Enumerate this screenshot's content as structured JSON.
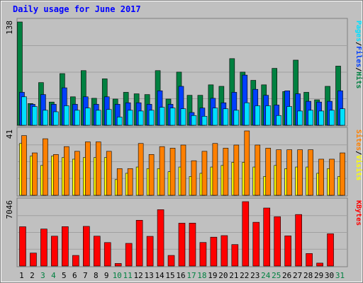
{
  "chart_data": [
    {
      "type": "bar",
      "title": "Daily usage for June 2017",
      "ylabel_max": "138",
      "legend": [
        "Pages",
        "Files",
        "Hits"
      ],
      "series": [
        {
          "name": "Hits",
          "color": "#008040",
          "values": [
            138,
            29,
            57,
            31,
            69,
            38,
            73,
            36,
            62,
            35,
            44,
            42,
            41,
            73,
            35,
            71,
            40,
            40,
            54,
            52,
            89,
            71,
            60,
            54,
            76,
            45,
            87,
            44,
            34,
            52,
            79
          ]
        },
        {
          "name": "Files",
          "color": "#0040ff",
          "values": [
            44,
            28,
            41,
            28,
            50,
            28,
            38,
            28,
            38,
            28,
            30,
            30,
            28,
            46,
            28,
            52,
            17,
            23,
            36,
            30,
            44,
            67,
            48,
            40,
            27,
            46,
            42,
            32,
            31,
            32,
            46
          ]
        },
        {
          "name": "Pages",
          "color": "#00e0ff",
          "values": [
            38,
            25,
            20,
            18,
            26,
            20,
            23,
            20,
            21,
            11,
            20,
            19,
            20,
            24,
            23,
            22,
            13,
            12,
            23,
            22,
            20,
            30,
            26,
            26,
            13,
            25,
            19,
            20,
            19,
            20,
            22
          ]
        }
      ]
    },
    {
      "type": "bar",
      "ylabel_max": "41",
      "legend": [
        "Sites",
        "Visits"
      ],
      "series": [
        {
          "name": "Visits",
          "color": "#ffff00",
          "values": [
            33,
            25,
            19,
            25,
            24,
            23,
            24,
            24,
            24,
            10,
            14,
            18,
            17,
            17,
            15,
            18,
            12,
            14,
            18,
            19,
            21,
            21,
            18,
            12,
            19,
            17,
            18,
            18,
            14,
            17,
            12
          ]
        },
        {
          "name": "Sites",
          "color": "#ff8000",
          "values": [
            38,
            27,
            36,
            26,
            31,
            28,
            34,
            34,
            28,
            17,
            17,
            33,
            26,
            31,
            30,
            32,
            22,
            28,
            33,
            30,
            32,
            41,
            32,
            30,
            29,
            29,
            29,
            29,
            23,
            23,
            27
          ]
        }
      ]
    },
    {
      "type": "bar",
      "ylabel_max": "7046",
      "legend": [
        "KBytes"
      ],
      "series": [
        {
          "name": "KBytes",
          "color": "#ff0000",
          "values": [
            4300,
            1420,
            4050,
            3270,
            4310,
            1160,
            4340,
            3270,
            2570,
            280,
            2480,
            5010,
            3250,
            6170,
            1160,
            4690,
            4700,
            2580,
            3160,
            3330,
            2350,
            7046,
            4790,
            6350,
            5400,
            3300,
            5640,
            1370,
            320,
            3530,
            0
          ]
        }
      ]
    }
  ],
  "x_labels": [
    "1",
    "2",
    "3",
    "4",
    "5",
    "6",
    "7",
    "8",
    "9",
    "10",
    "11",
    "12",
    "13",
    "14",
    "15",
    "16",
    "17",
    "18",
    "19",
    "20",
    "21",
    "22",
    "23",
    "24",
    "25",
    "26",
    "27",
    "28",
    "29",
    "30",
    "31"
  ],
  "weekend_days": [
    3,
    4,
    10,
    11,
    17,
    18,
    24,
    25,
    31
  ],
  "colors": {
    "weekday": "#000000",
    "weekend": "#008040",
    "bg": "#c0c0c0",
    "frame_dark": "#808080",
    "frame_light": "#ffffff"
  }
}
